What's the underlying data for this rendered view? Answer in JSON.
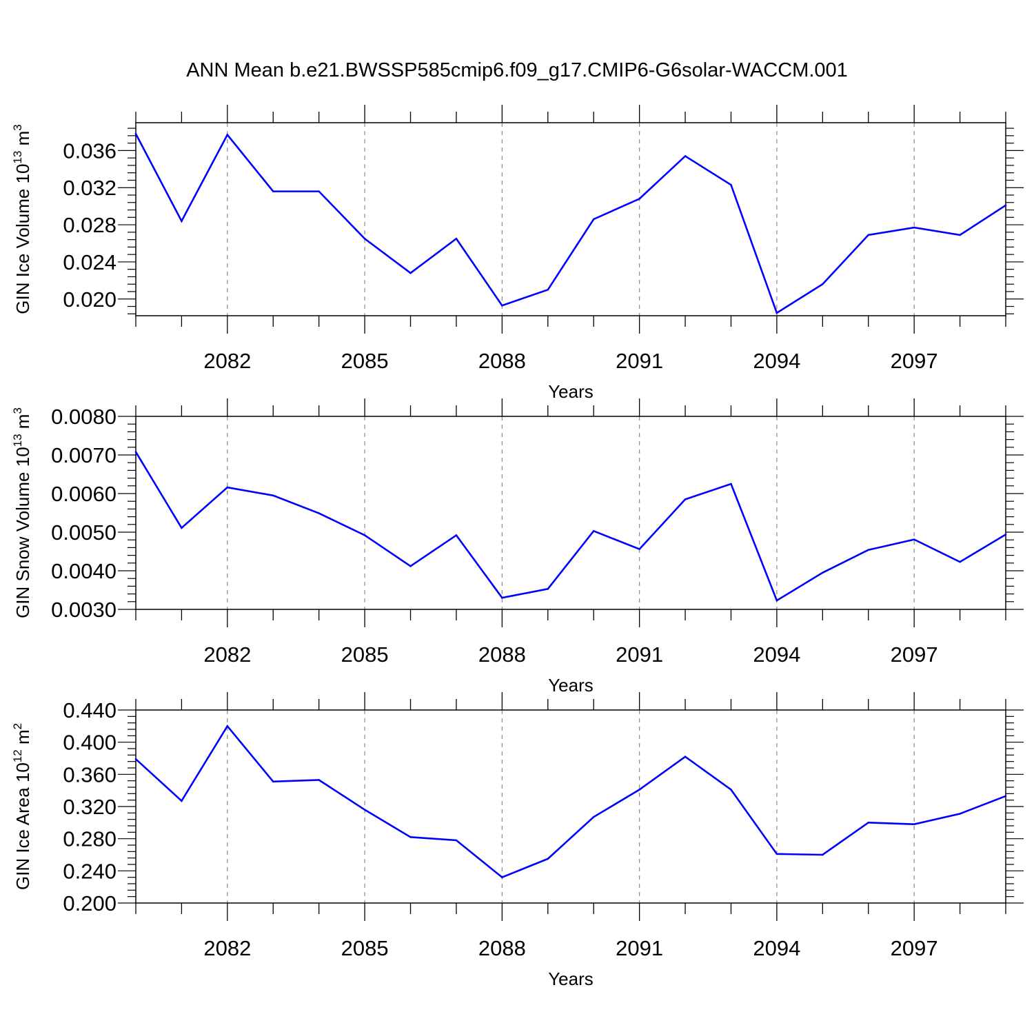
{
  "title": "ANN Mean b.e21.BWSSP585cmip6.f09_g17.CMIP6-G6solar-WACCM.001",
  "line_color": "#0000ff",
  "chart_data": [
    {
      "type": "line",
      "ylabel": "GIN Ice Volume 10",
      "ylabel_sup": "13",
      "ylabel_unit": " m",
      "ylabel_unit_sup": "3",
      "xlabel": "Years",
      "xlim": [
        2080,
        2099
      ],
      "ylim": [
        0.0182,
        0.039
      ],
      "xticks": [
        2082,
        2085,
        2088,
        2091,
        2094,
        2097
      ],
      "xtick_labels": [
        "2082",
        "2085",
        "2088",
        "2091",
        "2094",
        "2097"
      ],
      "yticks": [
        0.02,
        0.024,
        0.028,
        0.032,
        0.036
      ],
      "ytick_labels": [
        "0.020",
        "0.024",
        "0.028",
        "0.032",
        "0.036"
      ],
      "y_minor_step": 0.0008,
      "x": [
        2080,
        2081,
        2082,
        2083,
        2084,
        2085,
        2086,
        2087,
        2088,
        2089,
        2090,
        2091,
        2092,
        2093,
        2094,
        2095,
        2096,
        2097,
        2098,
        2099
      ],
      "values": [
        0.0378,
        0.0284,
        0.0377,
        0.0316,
        0.0316,
        0.0265,
        0.0228,
        0.0265,
        0.0193,
        0.021,
        0.0286,
        0.0308,
        0.0354,
        0.0323,
        0.0185,
        0.0216,
        0.0269,
        0.0277,
        0.0269,
        0.0301
      ],
      "grid": "vertical dashed at labeled years"
    },
    {
      "type": "line",
      "ylabel": "GIN Snow Volume 10",
      "ylabel_sup": "13",
      "ylabel_unit": " m",
      "ylabel_unit_sup": "3",
      "xlabel": "Years",
      "xlim": [
        2080,
        2099
      ],
      "ylim": [
        0.003,
        0.008
      ],
      "xticks": [
        2082,
        2085,
        2088,
        2091,
        2094,
        2097
      ],
      "xtick_labels": [
        "2082",
        "2085",
        "2088",
        "2091",
        "2094",
        "2097"
      ],
      "yticks": [
        0.003,
        0.004,
        0.005,
        0.006,
        0.007,
        0.008
      ],
      "ytick_labels": [
        "0.0030",
        "0.0040",
        "0.0050",
        "0.0060",
        "0.0070",
        "0.0080"
      ],
      "y_minor_step": 0.0002,
      "x": [
        2080,
        2081,
        2082,
        2083,
        2084,
        2085,
        2086,
        2087,
        2088,
        2089,
        2090,
        2091,
        2092,
        2093,
        2094,
        2095,
        2096,
        2097,
        2098,
        2099
      ],
      "values": [
        0.00708,
        0.00511,
        0.00616,
        0.00595,
        0.00549,
        0.00492,
        0.00412,
        0.00492,
        0.0033,
        0.00353,
        0.00503,
        0.00456,
        0.00585,
        0.00625,
        0.00323,
        0.00395,
        0.00454,
        0.00481,
        0.00423,
        0.00494
      ],
      "grid": "vertical dashed at labeled years"
    },
    {
      "type": "line",
      "ylabel": "GIN Ice Area 10",
      "ylabel_sup": "12",
      "ylabel_unit": " m",
      "ylabel_unit_sup": "2",
      "xlabel": "Years",
      "xlim": [
        2080,
        2099
      ],
      "ylim": [
        0.2,
        0.44
      ],
      "xticks": [
        2082,
        2085,
        2088,
        2091,
        2094,
        2097
      ],
      "xtick_labels": [
        "2082",
        "2085",
        "2088",
        "2091",
        "2094",
        "2097"
      ],
      "yticks": [
        0.2,
        0.24,
        0.28,
        0.32,
        0.36,
        0.4,
        0.44
      ],
      "ytick_labels": [
        "0.200",
        "0.240",
        "0.280",
        "0.320",
        "0.360",
        "0.400",
        "0.440"
      ],
      "y_minor_step": 0.008,
      "x": [
        2080,
        2081,
        2082,
        2083,
        2084,
        2085,
        2086,
        2087,
        2088,
        2089,
        2090,
        2091,
        2092,
        2093,
        2094,
        2095,
        2096,
        2097,
        2098,
        2099
      ],
      "values": [
        0.379,
        0.327,
        0.42,
        0.351,
        0.353,
        0.316,
        0.282,
        0.278,
        0.232,
        0.255,
        0.307,
        0.341,
        0.382,
        0.341,
        0.261,
        0.26,
        0.3,
        0.298,
        0.311,
        0.333
      ],
      "grid": "vertical dashed at labeled years"
    }
  ]
}
